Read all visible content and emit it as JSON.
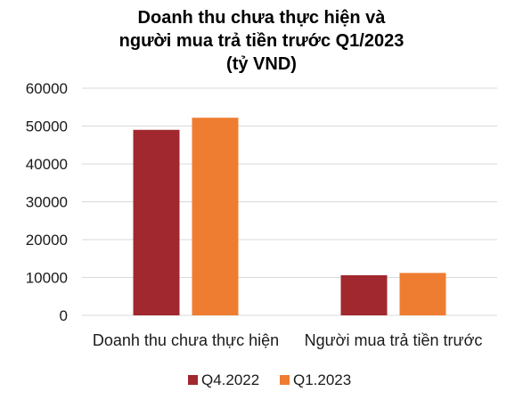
{
  "chart_data": {
    "type": "bar",
    "title_lines": [
      "Doanh thu chưa thực hiện và",
      "người mua trả tiền trước Q1/2023",
      "(tỷ VND)"
    ],
    "categories": [
      "Doanh thu chưa thực hiện",
      "Người mua trả tiền trước"
    ],
    "series": [
      {
        "name": "Q4.2022",
        "values": [
          49000,
          10600
        ],
        "color": "#a0282e"
      },
      {
        "name": "Q1.2023",
        "values": [
          52200,
          11200
        ],
        "color": "#ee7d31"
      }
    ],
    "ylim": [
      0,
      60000
    ],
    "yticks": [
      0,
      10000,
      20000,
      30000,
      40000,
      50000,
      60000
    ],
    "grid": true,
    "legend_position": "bottom"
  }
}
